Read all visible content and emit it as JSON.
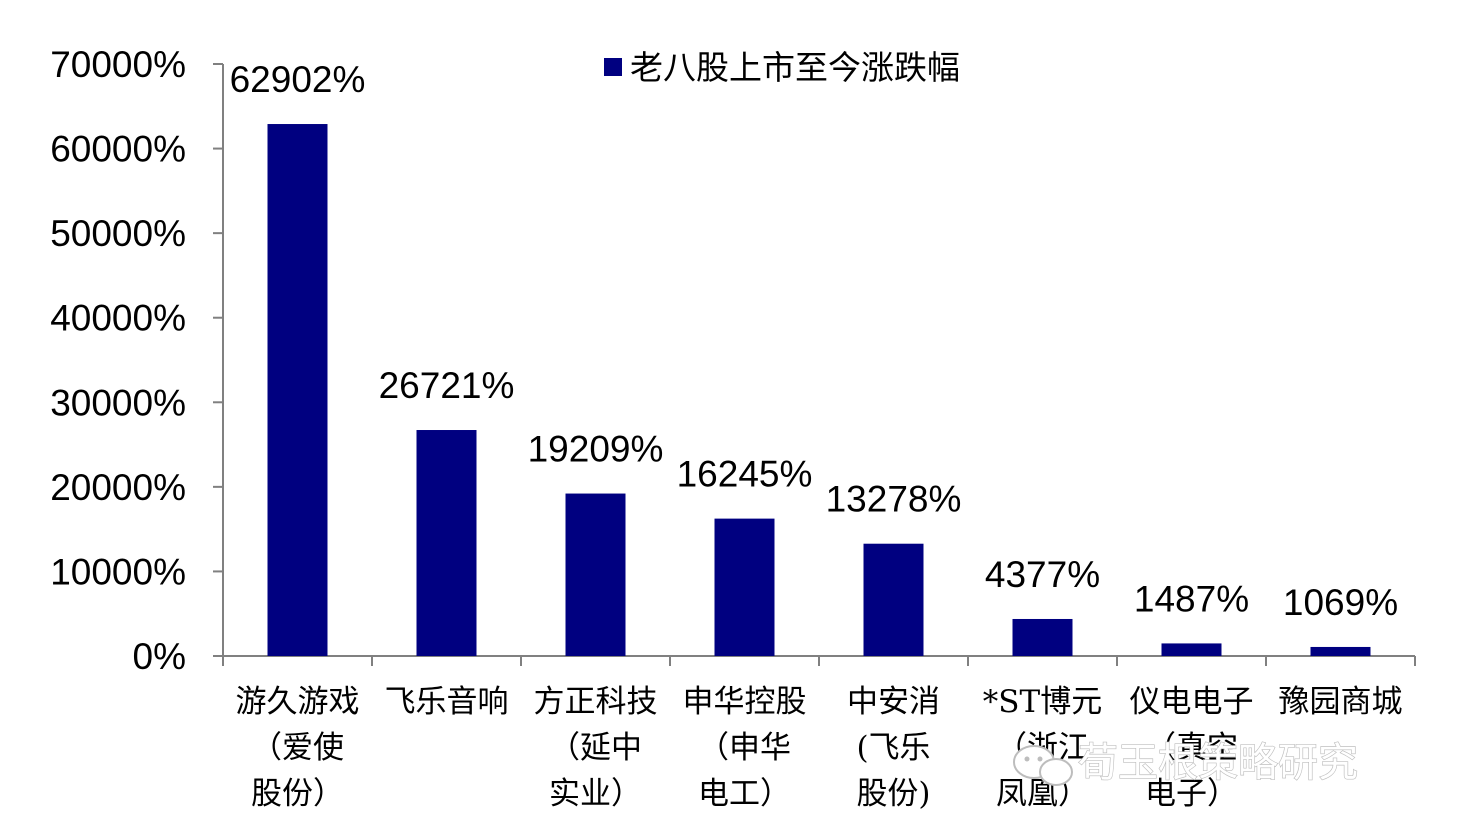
{
  "chart_data": {
    "type": "bar",
    "categories": [
      "游久游戏（爱使股份）",
      "飞乐音响",
      "方正科技（延中实业）",
      "申华控股（申华电工）",
      "中安消(飞乐股份)",
      "*ST博元（浙江凤凰）",
      "仪电电子（真空电子）",
      "豫园商城"
    ],
    "category_lines": [
      [
        "游久游戏",
        "（爱使",
        "股份）"
      ],
      [
        "飞乐音响"
      ],
      [
        "方正科技",
        "（延中",
        "实业）"
      ],
      [
        "申华控股",
        "（申华",
        "电工）"
      ],
      [
        "中安消",
        "(飞乐",
        "股份)"
      ],
      [
        "*ST博元",
        "（浙江",
        "凤凰）"
      ],
      [
        "仪电电子",
        "（真空",
        "电子）"
      ],
      [
        "豫园商城"
      ]
    ],
    "series": [
      {
        "name": "老八股上市至今涨跌幅",
        "values": [
          62902,
          26721,
          19209,
          16245,
          13278,
          4377,
          1487,
          1069
        ]
      }
    ],
    "value_labels": [
      "62902%",
      "26721%",
      "19209%",
      "16245%",
      "13278%",
      "4377%",
      "1487%",
      "1069%"
    ],
    "yticks": [
      0,
      10000,
      20000,
      30000,
      40000,
      50000,
      60000,
      70000
    ],
    "ytick_labels": [
      "0%",
      "10000%",
      "20000%",
      "30000%",
      "40000%",
      "50000%",
      "60000%",
      "70000%"
    ],
    "ylim": [
      0,
      70000
    ],
    "legend_position": "top-center",
    "grid": false,
    "bar_color": "#000080"
  },
  "watermark": {
    "text": "荀玉根策略研究",
    "icon": "wechat-bubble-icon"
  }
}
